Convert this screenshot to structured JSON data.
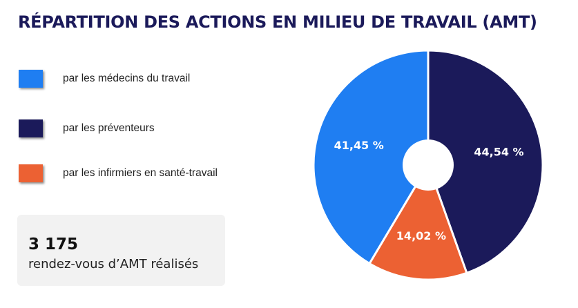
{
  "title": "RÉPARTITION DES ACTIONS EN MILIEU DE TRAVAIL (AMT)",
  "legend": [
    {
      "label": "par les médecins du travail",
      "color": "#1f7ef2"
    },
    {
      "label": "par les préventeurs",
      "color": "#1b1a5a"
    },
    {
      "label": "par les infirmiers en santé-travail",
      "color": "#ec6133"
    }
  ],
  "stat": {
    "value": "3 175",
    "caption": "rendez-vous d’AMT réalisés"
  },
  "chart_data": {
    "type": "pie",
    "title": "RÉPARTITION DES ACTIONS EN MILIEU DE TRAVAIL (AMT)",
    "categories": [
      "par les médecins du travail",
      "par les préventeurs",
      "par les infirmiers en santé-travail"
    ],
    "values": [
      41.45,
      44.54,
      14.02
    ],
    "value_labels": [
      "41,45 %",
      "44,54 %",
      "14,02 %"
    ],
    "colors": [
      "#1f7ef2",
      "#1b1a5a",
      "#ec6133"
    ],
    "order_clockwise_from_top": [
      "par les préventeurs",
      "par les infirmiers en santé-travail",
      "par les médecins du travail"
    ],
    "donut_hole": true,
    "legend_position": "left"
  }
}
